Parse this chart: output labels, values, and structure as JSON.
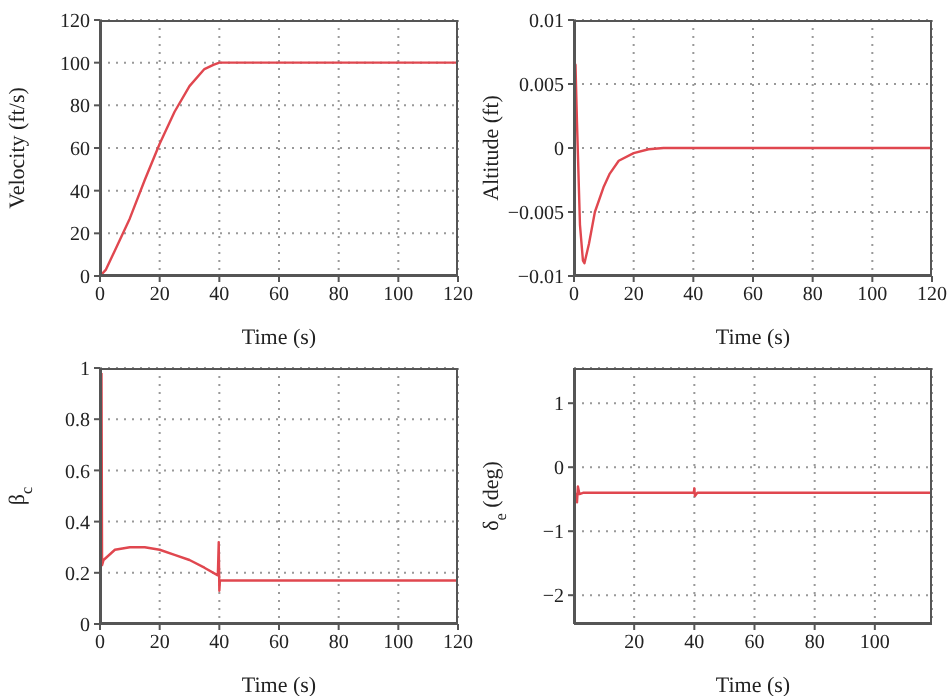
{
  "chart_data": [
    {
      "type": "line",
      "xlabel": "Time (s)",
      "ylabel": "Velocity (ft/s)",
      "x": [
        0,
        2,
        5,
        10,
        15,
        20,
        25,
        30,
        35,
        38,
        40,
        60,
        80,
        100,
        120
      ],
      "series": [
        {
          "color": "#e0474f",
          "values": [
            0,
            3,
            12,
            27,
            45,
            62,
            77,
            89,
            97,
            99,
            100,
            100,
            100,
            100,
            100
          ]
        }
      ],
      "xlim": [
        0,
        120
      ],
      "xticks": [
        0,
        20,
        40,
        60,
        80,
        100,
        120
      ],
      "ylim": [
        0,
        120
      ],
      "yticks": [
        0,
        20,
        40,
        60,
        80,
        100,
        120
      ],
      "grid": true
    },
    {
      "type": "line",
      "xlabel": "Time (s)",
      "ylabel": "Altitude (ft)",
      "x": [
        0,
        0.5,
        1,
        2,
        3,
        3.5,
        5,
        7,
        10,
        12,
        15,
        20,
        25,
        30,
        40,
        60,
        80,
        100,
        120
      ],
      "series": [
        {
          "color": "#e0474f",
          "values": [
            0,
            0.0065,
            0.002,
            -0.006,
            -0.0088,
            -0.009,
            -0.0075,
            -0.005,
            -0.003,
            -0.002,
            -0.001,
            -0.0004,
            -0.0001,
            0,
            0,
            0,
            0,
            0,
            0
          ]
        }
      ],
      "xlim": [
        0,
        120
      ],
      "xticks": [
        0,
        20,
        40,
        60,
        80,
        100,
        120
      ],
      "ylim": [
        -0.01,
        0.01
      ],
      "yticks": [
        {
          "value": -0.01,
          "label": "−0.01"
        },
        {
          "value": -0.005,
          "label": "−0.005"
        },
        0,
        0.005,
        0.01
      ],
      "grid": true
    },
    {
      "type": "line",
      "xlabel": "Time (s)",
      "ylabel": "β$_{c}$",
      "x": [
        0.5,
        0.7,
        1.2,
        5,
        10,
        15,
        20,
        25,
        30,
        35,
        39.5,
        39.8,
        40,
        40.2,
        41,
        60,
        80,
        100,
        120
      ],
      "series": [
        {
          "color": "#e0474f",
          "values": [
            0.98,
            0.23,
            0.25,
            0.29,
            0.3,
            0.3,
            0.29,
            0.27,
            0.25,
            0.22,
            0.19,
            0.32,
            0.13,
            0.17,
            0.17,
            0.17,
            0.17,
            0.17,
            0.17
          ]
        }
      ],
      "xlim": [
        0,
        120
      ],
      "xticks": [
        0,
        20,
        40,
        60,
        80,
        100,
        120
      ],
      "ylim": [
        0,
        1
      ],
      "yticks": [
        0,
        0.2,
        0.4,
        0.6,
        0.8,
        1
      ],
      "grid": true
    },
    {
      "type": "line",
      "xlabel": "Time (s)",
      "ylabel": "δ$_{e}$ (deg)",
      "x": [
        0.5,
        1,
        1.3,
        1.8,
        3,
        39.8,
        40,
        40.2,
        41,
        60,
        80,
        100,
        119
      ],
      "series": [
        {
          "color": "#e0474f",
          "values": [
            -0.4,
            -0.55,
            -0.3,
            -0.42,
            -0.4,
            -0.4,
            -0.33,
            -0.45,
            -0.4,
            -0.4,
            -0.4,
            -0.4,
            -0.4
          ]
        }
      ],
      "xlim": [
        0,
        119
      ],
      "xticks": [
        20,
        40,
        60,
        80,
        100
      ],
      "ylim": [
        -2.45,
        1.55
      ],
      "yticks": [
        {
          "value": -2,
          "label": "−2"
        },
        {
          "value": -1,
          "label": "−1"
        },
        0,
        1
      ],
      "grid": true
    }
  ]
}
